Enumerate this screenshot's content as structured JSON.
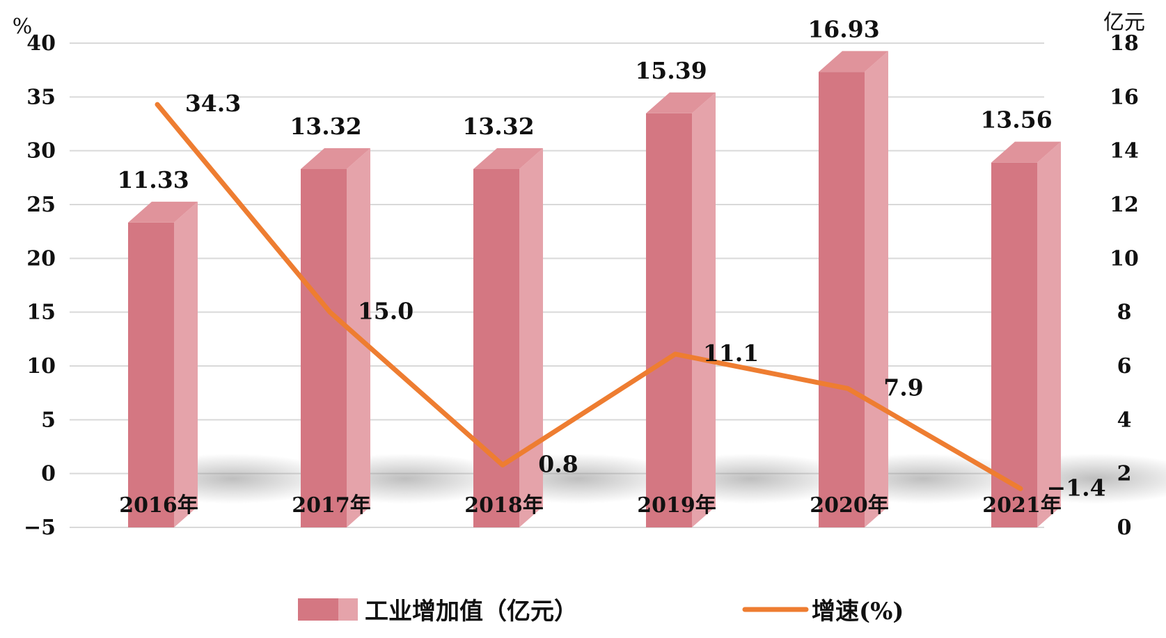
{
  "chart_data": {
    "type": "bar",
    "categories": [
      "2016年",
      "2017年",
      "2018年",
      "2019年",
      "2020年",
      "2021年"
    ],
    "series": [
      {
        "name": "工业增加值（亿元）",
        "type": "bar",
        "axis": "right",
        "values": [
          11.33,
          13.32,
          13.32,
          15.39,
          16.93,
          13.56
        ],
        "labels": [
          "11.33",
          "13.32",
          "13.32",
          "15.39",
          "16.93",
          "13.56"
        ]
      },
      {
        "name": "增速(%)",
        "type": "line",
        "axis": "left",
        "values": [
          34.3,
          15.0,
          0.8,
          11.1,
          7.9,
          -1.4
        ],
        "labels": [
          "34.3",
          "15.0",
          "0.8",
          "11.1",
          "7.9",
          "−1.4"
        ]
      }
    ],
    "left_axis": {
      "unit": "%",
      "ylim": [
        -5,
        40
      ],
      "ticks": [
        "40",
        "35",
        "30",
        "25",
        "20",
        "15",
        "10",
        "5",
        "0",
        "−5"
      ]
    },
    "right_axis": {
      "unit": "亿元",
      "ylim": [
        0,
        18
      ],
      "ticks": [
        "18",
        "16",
        "14",
        "12",
        "10",
        "8",
        "6",
        "4",
        "2",
        "0"
      ]
    },
    "grid": true,
    "legend_position": "bottom",
    "colors": {
      "bar_front": "#d47782",
      "bar_side": "#e5a3aa",
      "bar_top": "#e0939b",
      "line": "#ee7d31",
      "grid": "#d9d9d9"
    }
  }
}
